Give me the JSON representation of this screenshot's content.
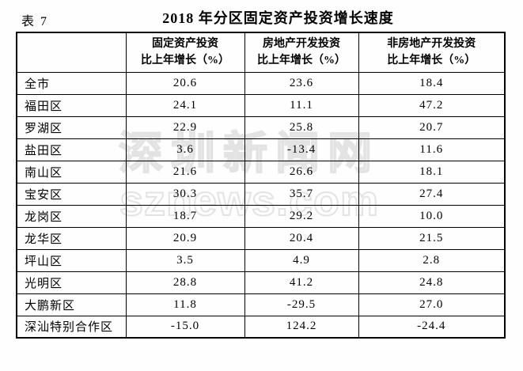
{
  "page": {
    "table_label": "表 7",
    "title": "2018 年分区固定资产投资增长速度"
  },
  "table": {
    "corner_header": "",
    "columns": [
      {
        "line1": "固定资产投资",
        "line2": "比上年增长（%）"
      },
      {
        "line1": "房地产开发投资",
        "line2": "比上年增长（%）"
      },
      {
        "line1": "非房地产开发投资",
        "line2": "比上年增长（%）"
      }
    ],
    "rows": [
      {
        "region": "全市",
        "values": [
          "20.6",
          "23.6",
          "18.4"
        ]
      },
      {
        "region": "福田区",
        "values": [
          "24.1",
          "11.1",
          "47.2"
        ]
      },
      {
        "region": "罗湖区",
        "values": [
          "22.9",
          "25.8",
          "20.7"
        ]
      },
      {
        "region": "盐田区",
        "values": [
          "3.6",
          "-13.4",
          "11.6"
        ]
      },
      {
        "region": "南山区",
        "values": [
          "21.6",
          "26.6",
          "18.1"
        ]
      },
      {
        "region": "宝安区",
        "values": [
          "30.3",
          "35.7",
          "27.4"
        ]
      },
      {
        "region": "龙岗区",
        "values": [
          "18.7",
          "29.2",
          "10.0"
        ]
      },
      {
        "region": "龙华区",
        "values": [
          "20.9",
          "20.4",
          "21.5"
        ]
      },
      {
        "region": "坪山区",
        "values": [
          "3.5",
          "4.9",
          "2.8"
        ]
      },
      {
        "region": "光明区",
        "values": [
          "28.8",
          "41.2",
          "24.8"
        ]
      },
      {
        "region": "大鹏新区",
        "values": [
          "11.8",
          "-29.5",
          "27.0"
        ]
      },
      {
        "region": "深汕特别合作区",
        "values": [
          "-15.0",
          "124.2",
          "-24.4"
        ]
      }
    ]
  },
  "watermark": {
    "line1": "深圳新闻网",
    "line2": "sznews.com"
  },
  "colors": {
    "border": "#000000",
    "text": "#000000",
    "watermark": "#e3e3e3",
    "background": "#ffffff"
  }
}
